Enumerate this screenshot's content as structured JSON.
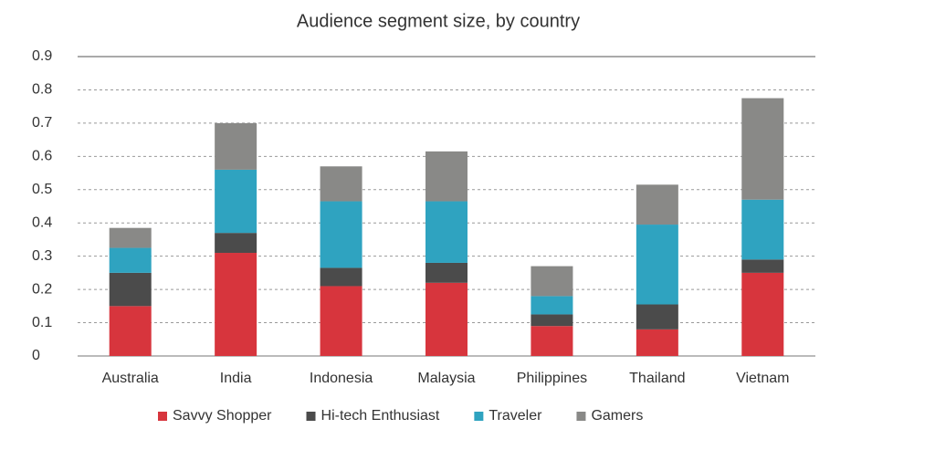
{
  "chart_data": {
    "type": "stacked_bar",
    "title": "Audience segment size, by country",
    "categories": [
      "Australia",
      "India",
      "Indonesia",
      "Malaysia",
      "Philippines",
      "Thailand",
      "Vietnam"
    ],
    "series": [
      {
        "name": "Savvy Shopper",
        "color": "#d7353d",
        "values": [
          0.15,
          0.31,
          0.21,
          0.22,
          0.09,
          0.08,
          0.25
        ]
      },
      {
        "name": "Hi-tech Enthusiast",
        "color": "#4b4b4b",
        "values": [
          0.1,
          0.06,
          0.055,
          0.06,
          0.035,
          0.075,
          0.04
        ]
      },
      {
        "name": "Traveler",
        "color": "#2fa3c0",
        "values": [
          0.075,
          0.19,
          0.2,
          0.185,
          0.055,
          0.24,
          0.18
        ]
      },
      {
        "name": "Gamers",
        "color": "#898987",
        "values": [
          0.06,
          0.14,
          0.105,
          0.15,
          0.09,
          0.12,
          0.305
        ]
      }
    ],
    "ylim": [
      0,
      0.9
    ],
    "yticks": [
      0,
      0.1,
      0.2,
      0.3,
      0.4,
      0.5,
      0.6,
      0.7,
      0.8,
      0.9
    ],
    "grid": true
  }
}
